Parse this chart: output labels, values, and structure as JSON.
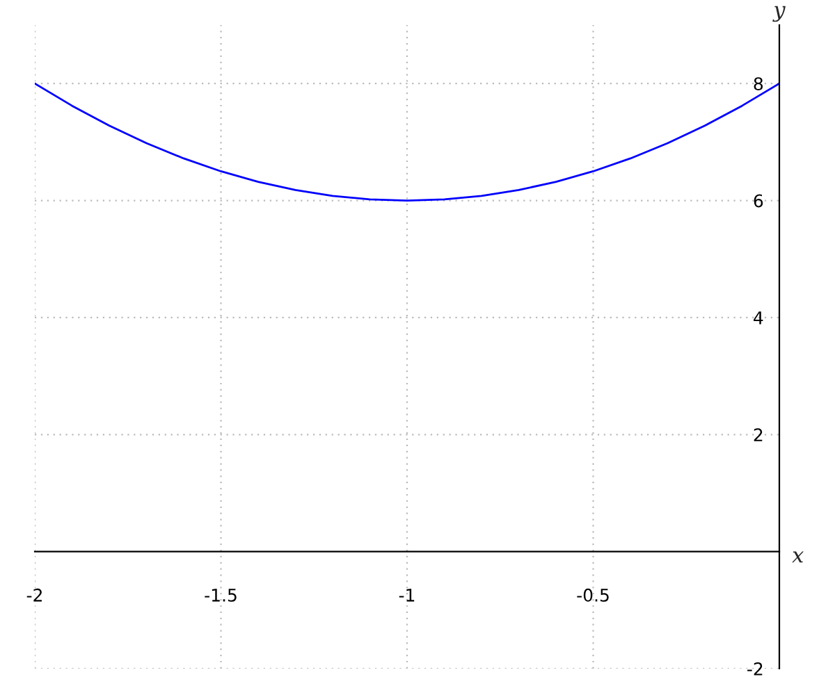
{
  "chart_data": {
    "type": "line",
    "xlabel": "x",
    "ylabel": "y",
    "x": [
      -2,
      -1.9,
      -1.8,
      -1.7,
      -1.6,
      -1.5,
      -1.4,
      -1.3,
      -1.2,
      -1.1,
      -1,
      -0.9,
      -0.8,
      -0.7,
      -0.6,
      -0.5,
      -0.4,
      -0.3,
      -0.2,
      -0.1,
      0
    ],
    "series": [
      {
        "color": "#0000ff",
        "values": [
          8,
          7.62,
          7.28,
          6.98,
          6.72,
          6.5,
          6.32,
          6.18,
          6.08,
          6.02,
          6,
          6.02,
          6.08,
          6.18,
          6.32,
          6.5,
          6.72,
          6.98,
          7.28,
          7.62,
          8
        ]
      }
    ],
    "xlim": [
      -2,
      0
    ],
    "ylim": [
      -2,
      9
    ],
    "xticks": [
      -2,
      -1.5,
      -1,
      -0.5
    ],
    "yticks": [
      -2,
      2,
      4,
      6,
      8
    ],
    "grid": true,
    "line_style": "solid",
    "marker": "none"
  }
}
